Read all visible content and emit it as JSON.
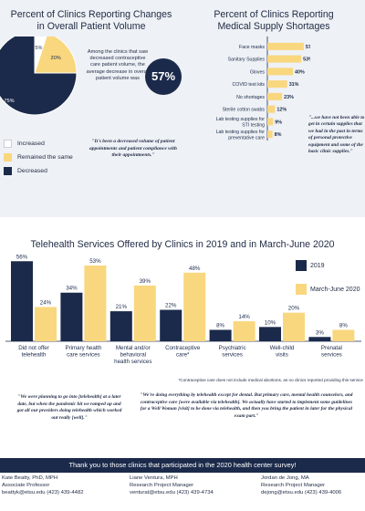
{
  "colors": {
    "navy": "#1b2a4a",
    "gold": "#f9d77e",
    "white": "#ffffff",
    "panel": "#eef1f5"
  },
  "left_panel": {
    "title_line1": "Percent of Clinics Reporting Changes",
    "title_line2": "in Overall Patient Volume",
    "pie_note": "Among the clinics that saw decreased contraceptive care patient volume, the average decrease in overall patient volume was",
    "big_pct": "57%",
    "legend": [
      {
        "label": "Increased",
        "color": "#ffffff"
      },
      {
        "label": "Remained the same",
        "color": "#f9d77e"
      },
      {
        "label": "Decreased",
        "color": "#1b2a4a"
      }
    ],
    "quote": "\"It's been a decreased volume of patient appointments and patient compliance with their appointments.\""
  },
  "right_panel": {
    "title_line1": "Percent of Clinics Reporting",
    "title_line2": "Medical Supply Shortages",
    "quote": "\"...we have not been able to get in certain supplies that we had in the past in terms of personal protective equipment and some of the basic clinic supplies.\""
  },
  "telehealth": {
    "title": "Telehealth Services Offered by Clinics in 2019 and in March-June 2020",
    "footnote": "*Contraceptive care does not include medical abortions, as no clinics reported providing this service",
    "quote_left": "\"We were planning to go into [telehealth] at a later date, but when the pandemic hit we ramped up and got all our providers doing telehealth which worked out really [well].\"",
    "quote_right": "\"We're doing everything by telehealth except for dental. But primary care, mental health counselors, and contraceptive care [were available via telehealth]. We actually have started to implement some guidelines for a Well Woman [visit] to be done via telehealth, and then you bring the patient in later for the physical exam part.\""
  },
  "footer": {
    "thanks": "Thank you to those clinics that participated in the 2020 health center survey!",
    "contacts": [
      {
        "name": "Kate Beatty, PhD, MPH",
        "role": "Associate Professor",
        "contact": "beattyk@etsu.edu (423) 439-4482"
      },
      {
        "name": "Liane Ventura, MPH",
        "role": "Research Project Manager",
        "contact": "venturat@etsu.edu (423) 439-4734"
      },
      {
        "name": "Jordan de Jong, MA",
        "role": "Research Project Manager",
        "contact": "dejong@etsu.edu (423) 439-4006"
      }
    ]
  },
  "chart_data": [
    {
      "type": "pie",
      "title": "Percent of Clinics Reporting Changes in Overall Patient Volume",
      "slices": [
        {
          "label": "Increased",
          "value": 5,
          "display": "5%"
        },
        {
          "label": "Remained the same",
          "value": 20,
          "display": "20%"
        },
        {
          "label": "Decreased",
          "value": 75,
          "display": "75%"
        }
      ]
    },
    {
      "type": "bar",
      "orientation": "horizontal",
      "title": "Percent of Clinics Reporting Medical Supply Shortages",
      "categories": [
        "Face masks",
        "Sanitary Supplies",
        "Gloves",
        "COVID test kits",
        "No shortages",
        "Sterile cotton swabs",
        "Lab testing supplies for STI testing",
        "Lab testing supplies for preventative care"
      ],
      "values": [
        57,
        53,
        40,
        31,
        23,
        12,
        9,
        8
      ],
      "labels": [
        "57%",
        "53%",
        "40%",
        "31%",
        "23%",
        "12%",
        "9%",
        "8%"
      ]
    },
    {
      "type": "bar",
      "title": "Telehealth Services Offered by Clinics in 2019 and in March-June 2020",
      "categories": [
        "Did not offer telehealth",
        "Primary health care services",
        "Mental and/or behavioral health services",
        "Contraceptive care*",
        "Psychiatric services",
        "Well-child visits",
        "Prenatal services"
      ],
      "series": [
        {
          "name": "2019",
          "values": [
            56,
            34,
            21,
            22,
            8,
            10,
            3
          ],
          "labels": [
            "56%",
            "34%",
            "21%",
            "22%",
            "8%",
            "10%",
            "3%"
          ]
        },
        {
          "name": "March-June 2020",
          "values": [
            24,
            53,
            39,
            48,
            14,
            20,
            8
          ],
          "labels": [
            "24%",
            "53%",
            "39%",
            "48%",
            "14%",
            "20%",
            "8%"
          ]
        }
      ],
      "ylim": [
        0,
        60
      ]
    }
  ]
}
